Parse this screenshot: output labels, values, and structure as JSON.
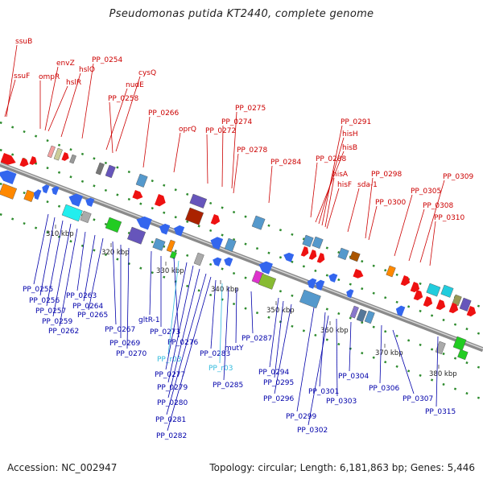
{
  "title": "Pseudomonas putida KT2440, complete genome",
  "accession": "Accession: NC_002947",
  "topology": "Topology: circular; Length: 6,181,863 bp; Genes: 5,446",
  "colors": {
    "backbone": "#8a8a8a",
    "label_top": "#cc0000",
    "label_bottom": "#0000aa",
    "label_rna": "#33bbdd",
    "dot_green": "#2e8b2e"
  },
  "scale_labels": [
    "310 kbp",
    "320 kbp",
    "330 kbp",
    "340 kbp",
    "350 kbp",
    "360 kbp",
    "370 kbp",
    "380 kbp"
  ],
  "top_labels": [
    "ssuB",
    "ssuF",
    "ompR",
    "envZ",
    "hslR",
    "hslO",
    "PP_0254",
    "nudE",
    "cysQ",
    "PP_0258",
    "PP_0266",
    "oprQ",
    "PP_0272",
    "PP_0274",
    "PP_0275",
    "PP_0278",
    "PP_0284",
    "PP_0288",
    "hisB",
    "hisH",
    "PP_0291",
    "hisA",
    "hisF",
    "sda-1",
    "PP_0298",
    "PP_0300",
    "PP_0305",
    "PP_0308",
    "PP_0309",
    "PP_0310"
  ],
  "bottom_labels": [
    "PP_0255",
    "PP_0256",
    "PP_0257",
    "PP_0259",
    "PP_0262",
    "PP_0263",
    "PP_0264",
    "PP_0265",
    "PP_0267",
    "PP_0269",
    "PP_0270",
    "gltR-1",
    "PP_0273",
    "PP_0276",
    "PP_r03",
    "PP_0277",
    "PP_0279",
    "PP_0280",
    "PP_0281",
    "PP_0282",
    "PP_0283",
    "PP_r03",
    "PP_0285",
    "mutY",
    "PP_0287",
    "PP_0294",
    "PP_0295",
    "PP_0296",
    "PP_0299",
    "PP_0301",
    "PP_0302",
    "PP_0303",
    "PP_0304",
    "PP_0306",
    "PP_0307",
    "PP_0315"
  ]
}
